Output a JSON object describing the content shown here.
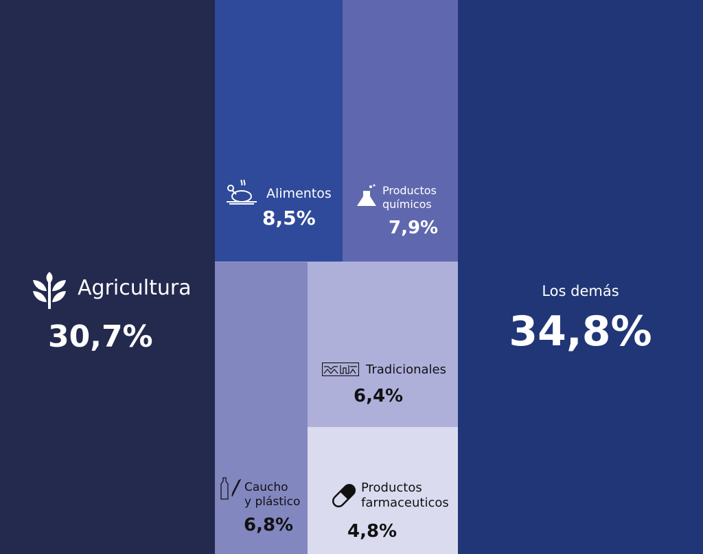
{
  "chart_data": {
    "type": "treemap",
    "title": "",
    "unit": "%",
    "items": [
      {
        "id": "agri",
        "label": "Agricultura",
        "value": 30.7,
        "display": "30,7%",
        "color": "#232a4e",
        "icon": "wheat-icon"
      },
      {
        "id": "alim",
        "label": "Alimentos",
        "value": 8.5,
        "display": "8,5%",
        "color": "#2f4a9a",
        "icon": "roast-chicken-icon"
      },
      {
        "id": "quim",
        "label": "Productos químicos",
        "label_lines": [
          "Productos",
          "químicos"
        ],
        "value": 7.9,
        "display": "7,9%",
        "color": "#5f68ae",
        "icon": "flask-icon"
      },
      {
        "id": "demas",
        "label": "Los demás",
        "value": 34.8,
        "display": "34,8%",
        "color": "#203677",
        "icon": ""
      },
      {
        "id": "cauc",
        "label": "Caucho y plástico",
        "label_lines": [
          "Caucho",
          "y plástico"
        ],
        "value": 6.8,
        "display": "6,8%",
        "color": "#8387c0",
        "icon": "bottle-icon"
      },
      {
        "id": "trad",
        "label": "Tradicionales",
        "value": 6.4,
        "display": "6,4%",
        "color": "#afb0da",
        "icon": "woven-pattern-icon"
      },
      {
        "id": "farm",
        "label": "Productos farmaceuticos",
        "label_lines": [
          "Productos",
          "farmaceuticos"
        ],
        "value": 4.8,
        "display": "4,8%",
        "color": "#dadbef",
        "icon": "pill-icon"
      }
    ]
  }
}
